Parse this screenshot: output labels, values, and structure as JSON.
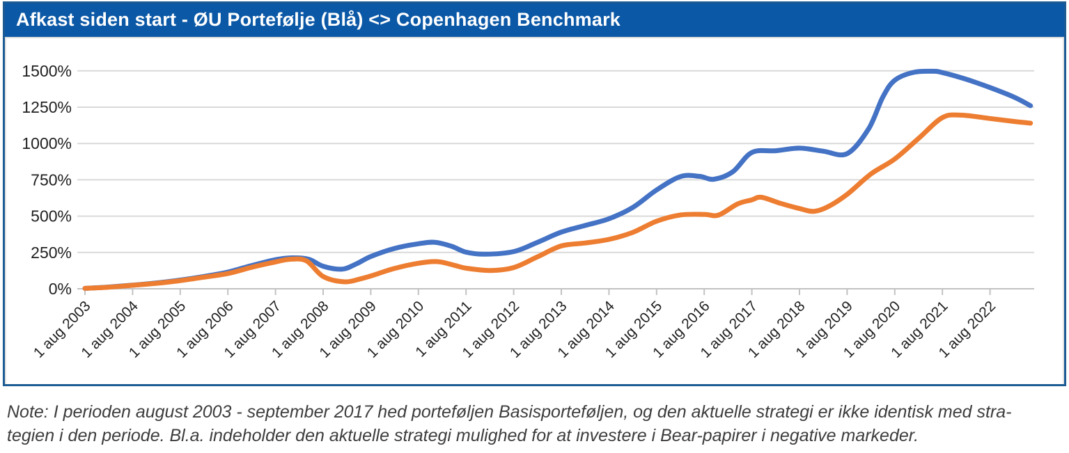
{
  "header": {
    "title": "Afkast siden start - ØU Portefølje (Blå) <> Copenhagen Benchmark"
  },
  "note": {
    "line1": "Note: I perioden august 2003 - september 2017 hed porteføljen Basisporteføljen, og den aktuelle strategi er ikke identisk med stra-",
    "line2": "tegien i den periode. Bl.a. indeholder den aktuelle strategi mulighed for at investere i Bear-papirer i negative markeder."
  },
  "colors": {
    "titlebar_bg": "#0b58a6",
    "titlebar_text": "#ffffff",
    "frame_border": "#1c5b93",
    "gridline": "#d9d9d9",
    "axis": "#c2c2c2",
    "tick_label": "#1f1f1f",
    "portfolio_line": "#4472c4",
    "benchmark_line": "#ed7d31",
    "note_text": "#3d3d3d"
  },
  "chart_data": {
    "type": "line",
    "title": "Afkast siden start - ØU Portefølje (Blå) <> Copenhagen Benchmark",
    "xlabel": "",
    "ylabel": "",
    "ylim": [
      0,
      1500
    ],
    "y_ticks": [
      {
        "v": 0,
        "label": "0%"
      },
      {
        "v": 250,
        "label": "250%"
      },
      {
        "v": 500,
        "label": "500%"
      },
      {
        "v": 750,
        "label": "750%"
      },
      {
        "v": 1000,
        "label": "1000%"
      },
      {
        "v": 1250,
        "label": "1250%"
      },
      {
        "v": 1500,
        "label": "1500%"
      }
    ],
    "x_unit": "years since 1 aug 2003 (tick index)",
    "x_tick_labels": [
      "1 aug 2003",
      "1 aug 2004",
      "1 aug 2005",
      "1 aug 2006",
      "1 aug 2007",
      "1 aug 2008",
      "1 aug 2009",
      "1 aug 2010",
      "1 aug 2011",
      "1 aug 2012",
      "1 aug 2013",
      "1 aug 2014",
      "1 aug 2015",
      "1 aug 2016",
      "1 aug 2017",
      "1 aug 2018",
      "1 aug 2019",
      "1 aug 2020",
      "1 aug 2021",
      "1 aug 2022"
    ],
    "grid": true,
    "legend": "none (blue identified in title)",
    "series": [
      {
        "name": "ØU Portefølje (Blå)",
        "color": "#4472c4",
        "points": [
          [
            0,
            3
          ],
          [
            0.5,
            12
          ],
          [
            1,
            25
          ],
          [
            1.5,
            40
          ],
          [
            2,
            60
          ],
          [
            2.5,
            85
          ],
          [
            3,
            115
          ],
          [
            3.5,
            160
          ],
          [
            4,
            200
          ],
          [
            4.35,
            213
          ],
          [
            4.7,
            203
          ],
          [
            5,
            155
          ],
          [
            5.4,
            135
          ],
          [
            5.7,
            172
          ],
          [
            6,
            222
          ],
          [
            6.5,
            278
          ],
          [
            7,
            310
          ],
          [
            7.35,
            320
          ],
          [
            7.7,
            292
          ],
          [
            8,
            252
          ],
          [
            8.4,
            238
          ],
          [
            9,
            256
          ],
          [
            9.5,
            320
          ],
          [
            10,
            390
          ],
          [
            10.5,
            436
          ],
          [
            11,
            482
          ],
          [
            11.5,
            560
          ],
          [
            12,
            680
          ],
          [
            12.5,
            772
          ],
          [
            12.9,
            774
          ],
          [
            13.2,
            754
          ],
          [
            13.6,
            805
          ],
          [
            14,
            938
          ],
          [
            14.5,
            950
          ],
          [
            15,
            968
          ],
          [
            15.5,
            947
          ],
          [
            16,
            930
          ],
          [
            16.45,
            1100
          ],
          [
            16.75,
            1320
          ],
          [
            17,
            1435
          ],
          [
            17.4,
            1490
          ],
          [
            17.8,
            1497
          ],
          [
            18,
            1488
          ],
          [
            18.5,
            1442
          ],
          [
            19,
            1385
          ],
          [
            19.5,
            1320
          ],
          [
            19.85,
            1260
          ]
        ]
      },
      {
        "name": "Copenhagen Benchmark",
        "color": "#ed7d31",
        "points": [
          [
            0,
            3
          ],
          [
            0.5,
            11
          ],
          [
            1,
            24
          ],
          [
            1.5,
            38
          ],
          [
            2,
            56
          ],
          [
            2.5,
            80
          ],
          [
            3,
            105
          ],
          [
            3.5,
            148
          ],
          [
            4,
            185
          ],
          [
            4.3,
            203
          ],
          [
            4.65,
            192
          ],
          [
            5,
            85
          ],
          [
            5.45,
            48
          ],
          [
            5.8,
            70
          ],
          [
            6,
            88
          ],
          [
            6.5,
            140
          ],
          [
            7,
            176
          ],
          [
            7.4,
            187
          ],
          [
            7.75,
            162
          ],
          [
            8,
            142
          ],
          [
            8.5,
            126
          ],
          [
            9,
            146
          ],
          [
            9.5,
            220
          ],
          [
            10,
            295
          ],
          [
            10.5,
            315
          ],
          [
            11,
            340
          ],
          [
            11.5,
            388
          ],
          [
            12,
            465
          ],
          [
            12.5,
            508
          ],
          [
            13,
            512
          ],
          [
            13.3,
            507
          ],
          [
            13.7,
            584
          ],
          [
            14,
            612
          ],
          [
            14.2,
            630
          ],
          [
            14.6,
            588
          ],
          [
            15,
            552
          ],
          [
            15.3,
            533
          ],
          [
            15.6,
            565
          ],
          [
            16,
            650
          ],
          [
            16.5,
            790
          ],
          [
            17,
            893
          ],
          [
            17.5,
            1035
          ],
          [
            18,
            1178
          ],
          [
            18.4,
            1195
          ],
          [
            19,
            1172
          ],
          [
            19.5,
            1152
          ],
          [
            19.85,
            1140
          ]
        ]
      }
    ]
  }
}
